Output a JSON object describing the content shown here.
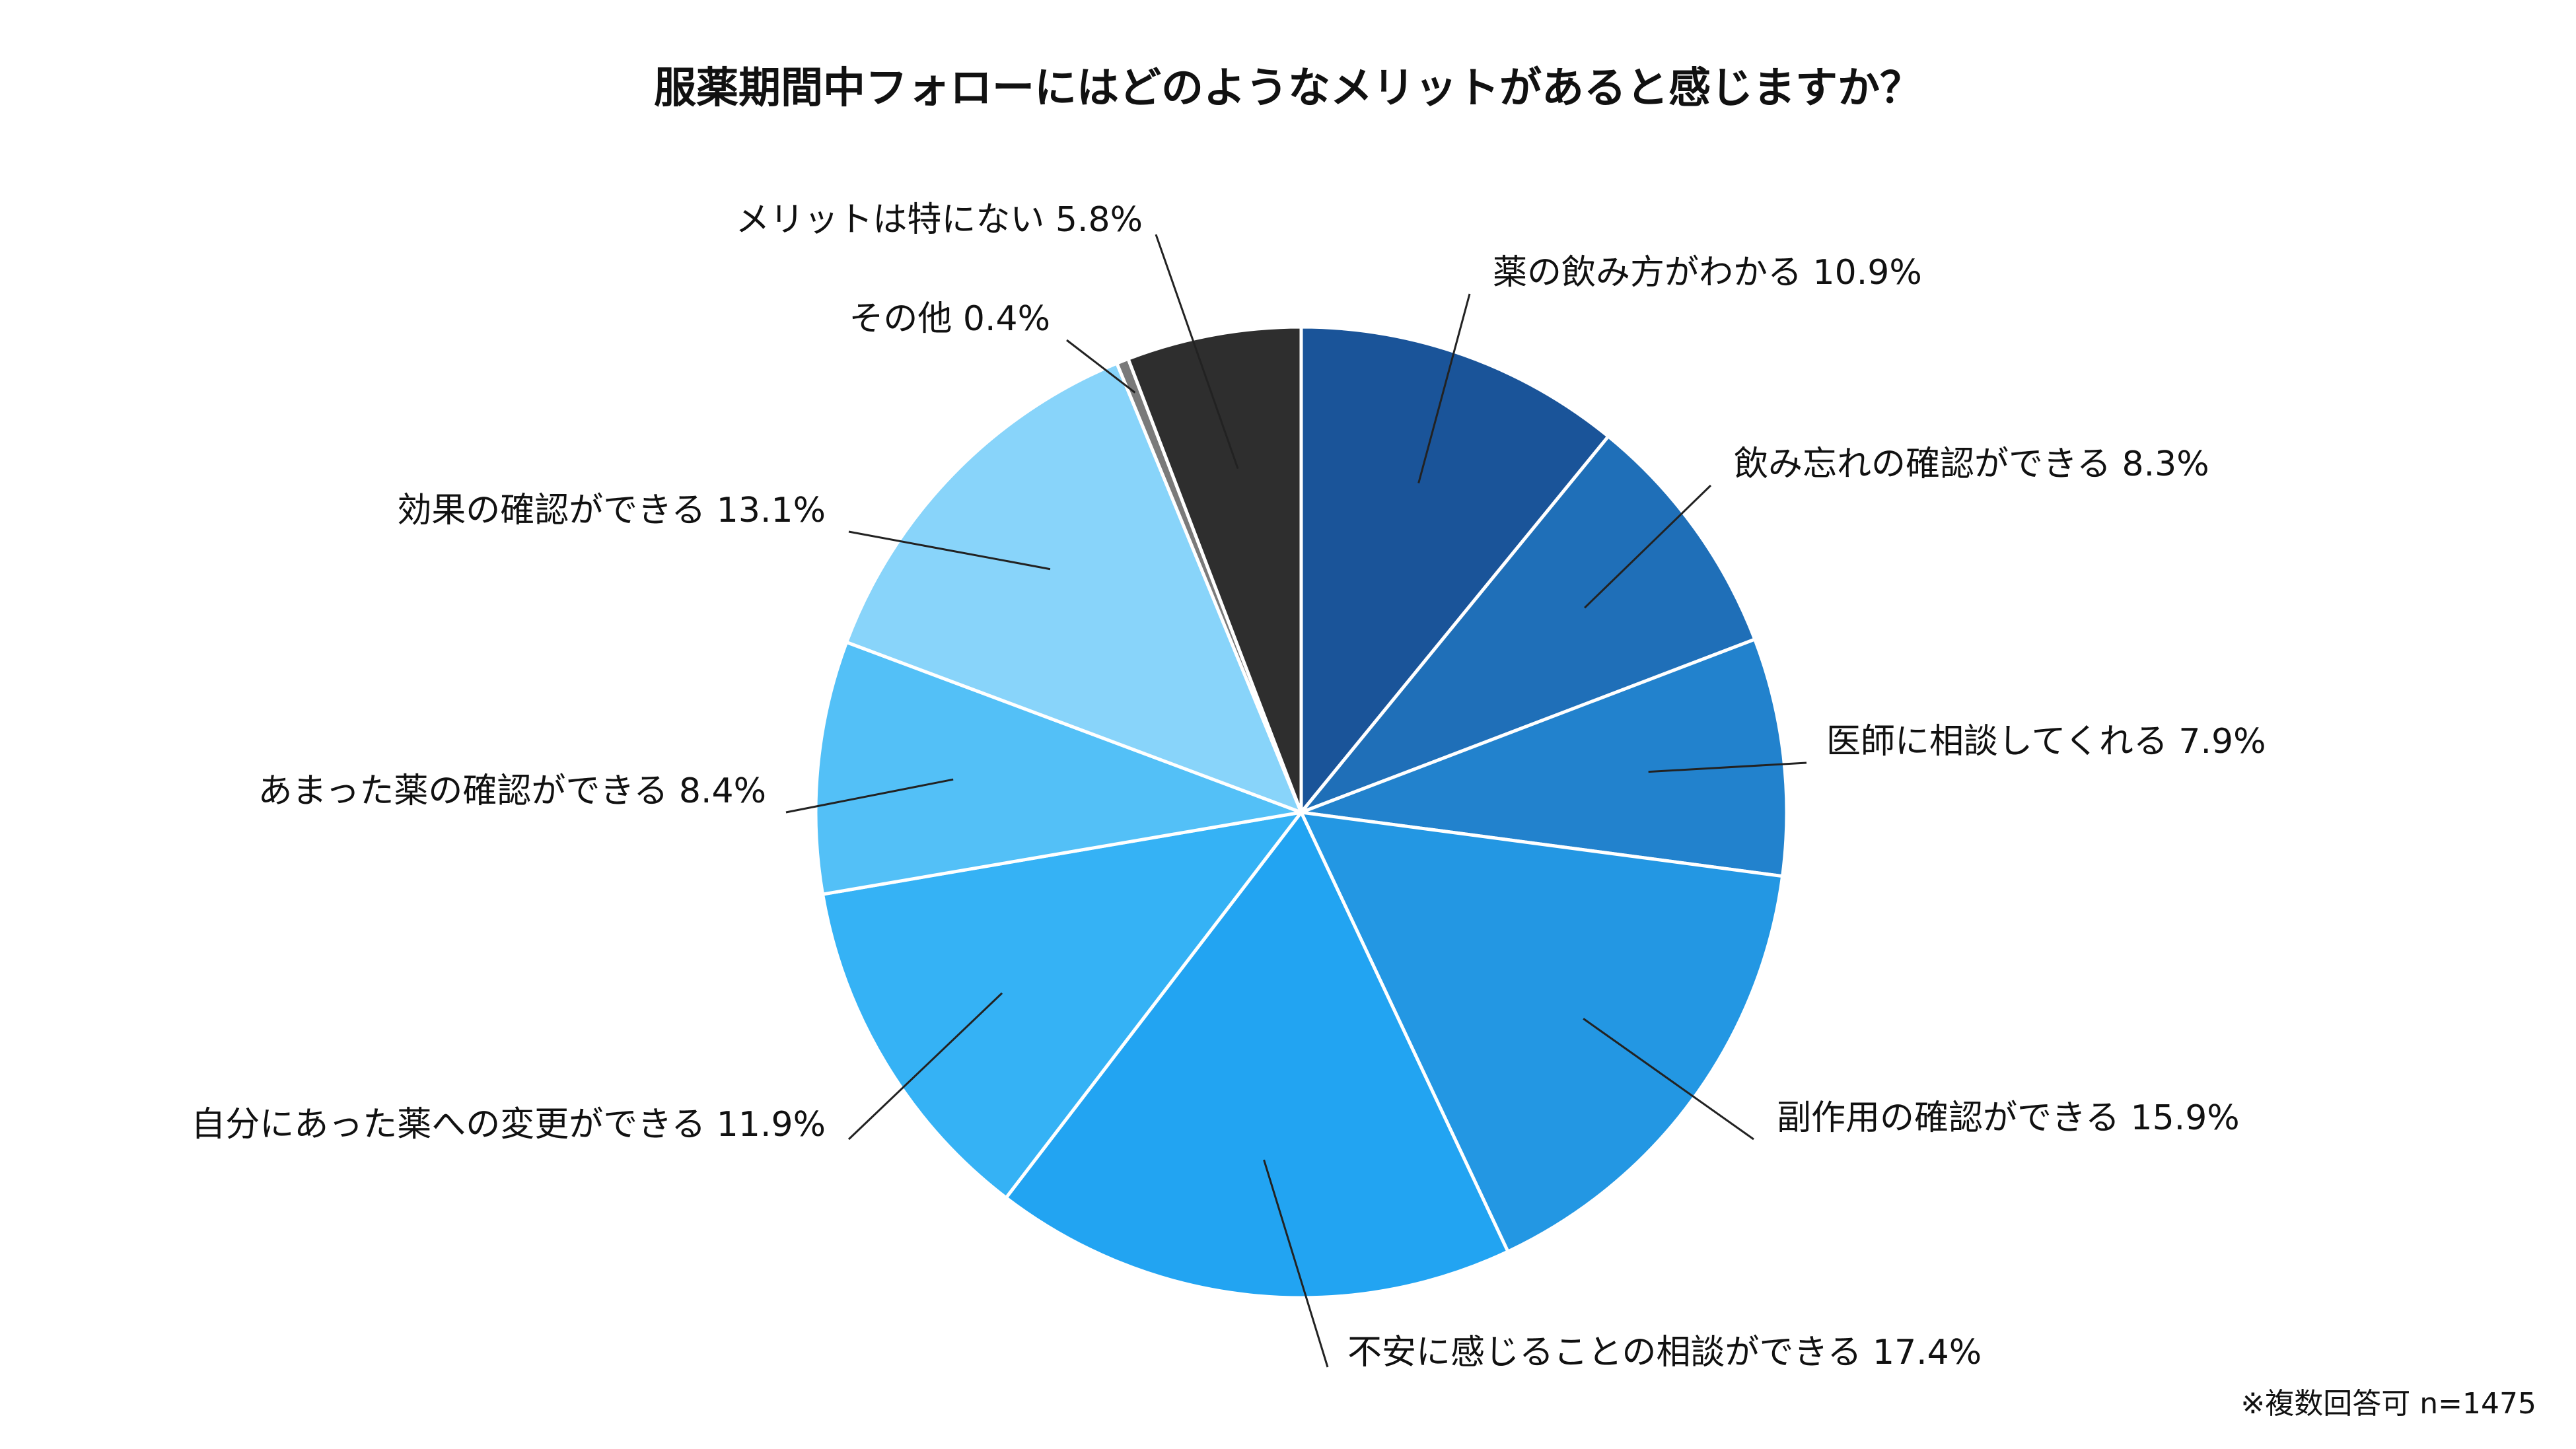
{
  "chart_data": {
    "type": "pie",
    "title": "服薬期間中フォローにはどのようなメリットがあると感じますか？",
    "note": "※複数回答可 n=1475",
    "start_angle_deg": 0,
    "direction": "clockwise",
    "slices": [
      {
        "label": "薬の飲み方がわかる",
        "value": 10.9,
        "value_label": "10.9%",
        "color": "#1A5499",
        "label_color": "#111111"
      },
      {
        "label": "飲み忘れの確認ができる",
        "value": 8.3,
        "value_label": "8.3%",
        "color": "#1F6FB8",
        "label_color": "#111111"
      },
      {
        "label": "医師に相談してくれる",
        "value": 7.9,
        "value_label": "7.9%",
        "color": "#2282CD",
        "label_color": "#111111"
      },
      {
        "label": "副作用の確認ができる",
        "value": 15.9,
        "value_label": "15.9%",
        "color": "#2397E3",
        "label_color": "#111111"
      },
      {
        "label": "不安に感じることの相談ができる",
        "value": 17.4,
        "value_label": "17.4%",
        "color": "#22A4F2",
        "label_color": "#111111"
      },
      {
        "label": "自分にあった薬への変更ができる",
        "value": 11.9,
        "value_label": "11.9%",
        "color": "#35B2F5",
        "label_color": "#111111"
      },
      {
        "label": "あまった薬の確認ができる",
        "value": 8.4,
        "value_label": "8.4%",
        "color": "#53C0F7",
        "label_color": "#111111"
      },
      {
        "label": "効果の確認ができる",
        "value": 13.1,
        "value_label": "13.1%",
        "color": "#88D4FA",
        "label_color": "#111111"
      },
      {
        "label": "その他",
        "value": 0.4,
        "value_label": "0.4%",
        "color": "#7A7A7A",
        "label_color": "#111111"
      },
      {
        "label": "メリットは特にない",
        "value": 5.8,
        "value_label": "5.8%",
        "color": "#2E2E2E",
        "label_color": "#E01010"
      }
    ]
  }
}
